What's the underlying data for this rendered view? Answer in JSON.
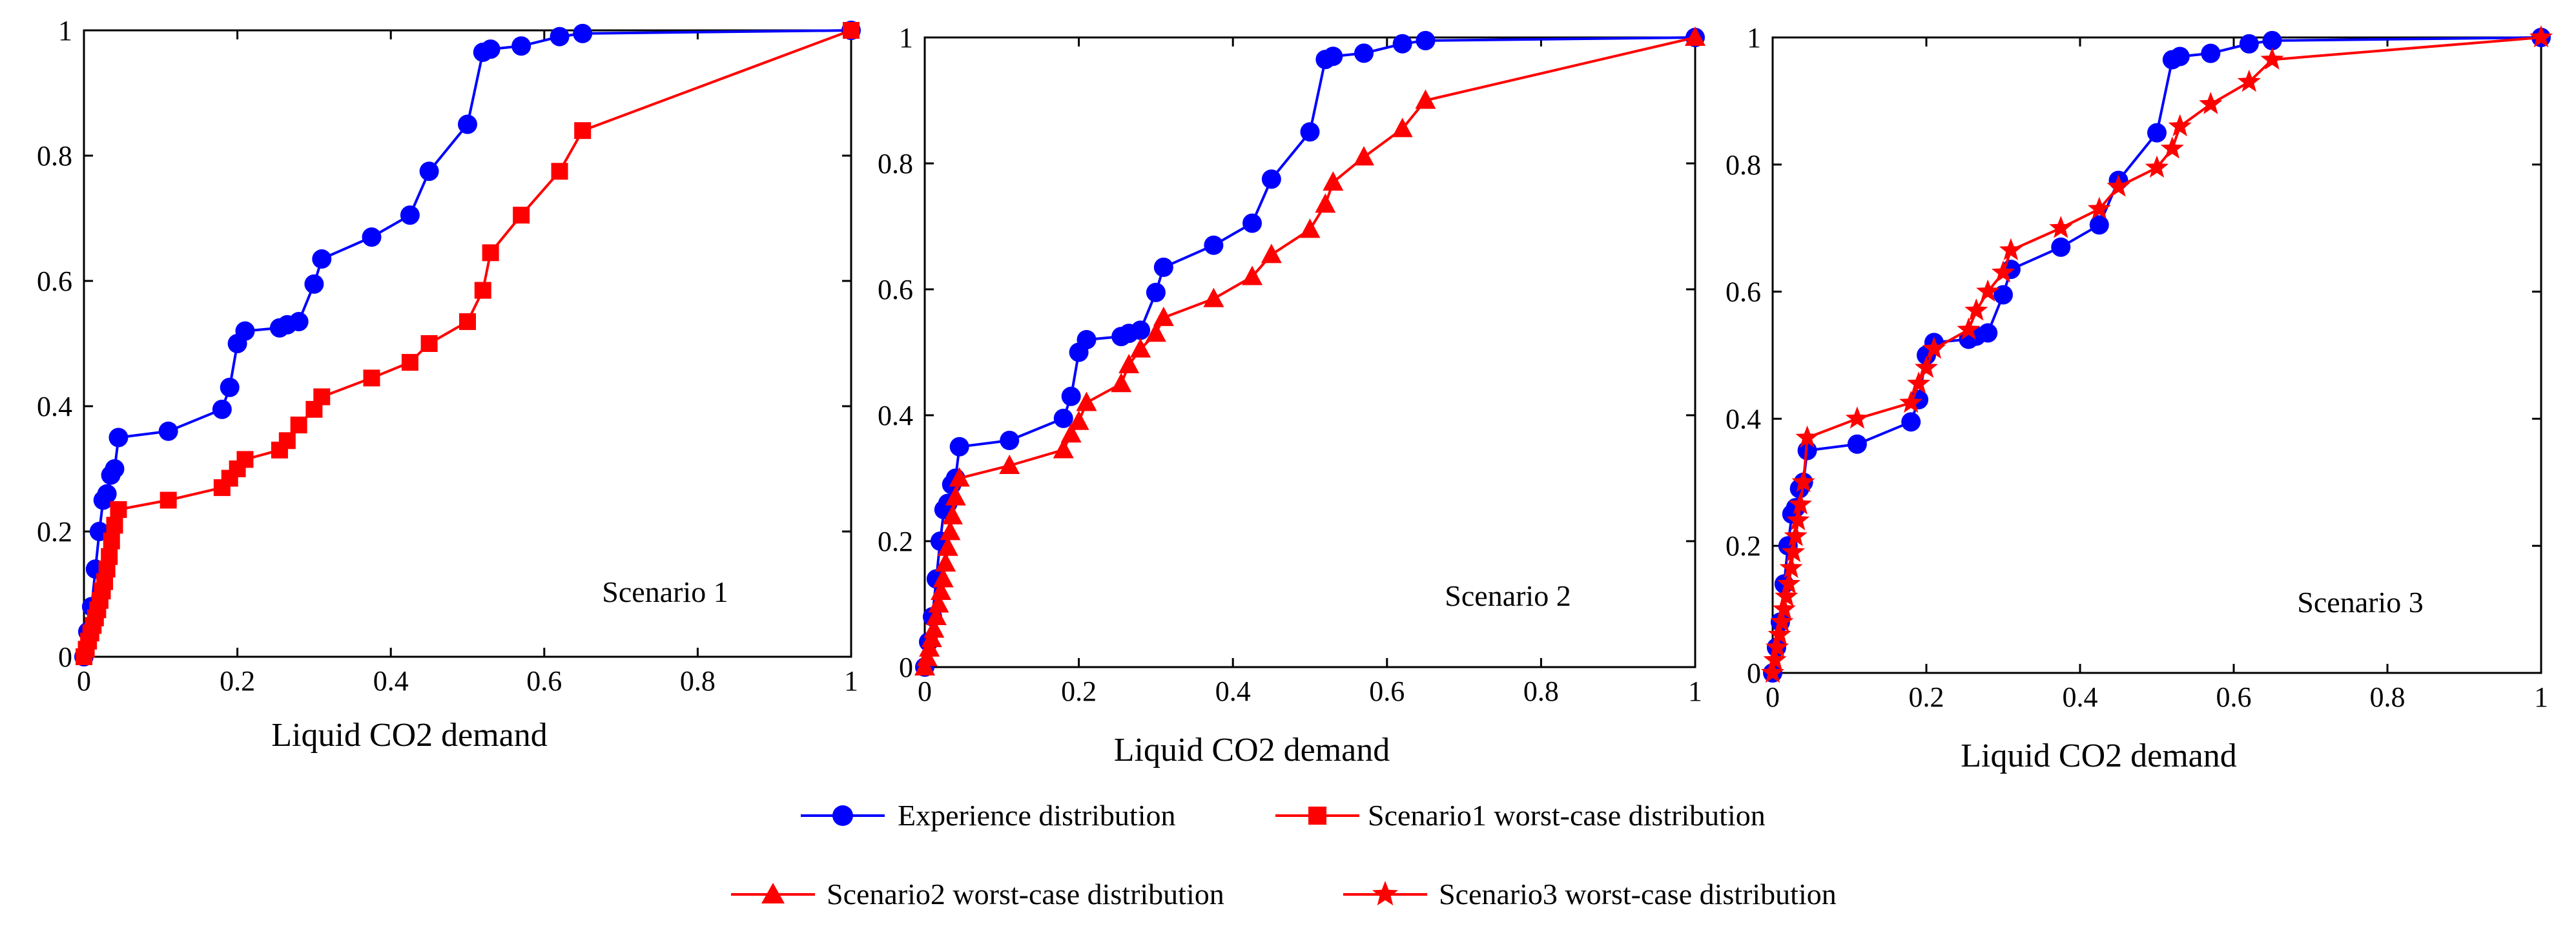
{
  "colors": {
    "experience": "#0000ff",
    "worst_case": "#ff0000",
    "axis": "#000000"
  },
  "legend": {
    "experience": "Experience distribution",
    "scenario1": "Scenario1 worst-case distribution",
    "scenario2": "Scenario2 worst-case distribution",
    "scenario3": "Scenario3 worst-case distribution"
  },
  "chart_data": [
    {
      "type": "line",
      "title": "Scenario 1",
      "xlabel": "Liquid CO2 demand",
      "ylabel": "",
      "xlim": [
        0,
        1
      ],
      "ylim": [
        0,
        1
      ],
      "xticks": [
        "0",
        "0.2",
        "0.4",
        "0.6",
        "0.8",
        "1"
      ],
      "yticks": [
        "0",
        "0.2",
        "0.4",
        "0.6",
        "0.8",
        "1"
      ],
      "series": [
        {
          "name": "Experience distribution",
          "marker": "circle",
          "color": "#0000ff",
          "x": [
            0,
            0.005,
            0.01,
            0.015,
            0.02,
            0.025,
            0.03,
            0.035,
            0.04,
            0.045,
            0.11,
            0.18,
            0.19,
            0.2,
            0.21,
            0.255,
            0.265,
            0.28,
            0.3,
            0.31,
            0.375,
            0.425,
            0.45,
            0.5,
            0.52,
            0.53,
            0.57,
            0.62,
            0.65,
            1.0
          ],
          "y": [
            0,
            0.04,
            0.08,
            0.14,
            0.2,
            0.25,
            0.26,
            0.29,
            0.3,
            0.35,
            0.36,
            0.395,
            0.43,
            0.5,
            0.52,
            0.525,
            0.53,
            0.535,
            0.595,
            0.635,
            0.67,
            0.705,
            0.775,
            0.85,
            0.965,
            0.97,
            0.975,
            0.99,
            0.995,
            1.0
          ]
        },
        {
          "name": "Scenario1 worst-case distribution",
          "marker": "square",
          "color": "#ff0000",
          "x": [
            0,
            0.003,
            0.006,
            0.009,
            0.012,
            0.015,
            0.018,
            0.021,
            0.024,
            0.027,
            0.03,
            0.033,
            0.036,
            0.04,
            0.045,
            0.11,
            0.18,
            0.19,
            0.2,
            0.21,
            0.255,
            0.265,
            0.28,
            0.3,
            0.31,
            0.375,
            0.425,
            0.45,
            0.5,
            0.52,
            0.53,
            0.57,
            0.62,
            0.65,
            1.0
          ],
          "y": [
            0,
            0.012,
            0.025,
            0.038,
            0.05,
            0.062,
            0.075,
            0.09,
            0.105,
            0.12,
            0.14,
            0.16,
            0.185,
            0.21,
            0.235,
            0.25,
            0.27,
            0.285,
            0.3,
            0.315,
            0.33,
            0.345,
            0.37,
            0.395,
            0.415,
            0.445,
            0.47,
            0.5,
            0.535,
            0.585,
            0.645,
            0.705,
            0.775,
            0.84,
            1.0
          ]
        }
      ]
    },
    {
      "type": "line",
      "title": "Scenario 2",
      "xlabel": "Liquid CO2 demand",
      "ylabel": "",
      "xlim": [
        0,
        1
      ],
      "ylim": [
        0,
        1
      ],
      "xticks": [
        "0",
        "0.2",
        "0.4",
        "0.6",
        "0.8",
        "1"
      ],
      "yticks": [
        "0",
        "0.2",
        "0.4",
        "0.6",
        "0.8",
        "1"
      ],
      "series": [
        {
          "name": "Experience distribution",
          "marker": "circle",
          "color": "#0000ff",
          "x": [
            0,
            0.005,
            0.01,
            0.015,
            0.02,
            0.025,
            0.03,
            0.035,
            0.04,
            0.045,
            0.11,
            0.18,
            0.19,
            0.2,
            0.21,
            0.255,
            0.265,
            0.28,
            0.3,
            0.31,
            0.375,
            0.425,
            0.45,
            0.5,
            0.52,
            0.53,
            0.57,
            0.62,
            0.65,
            1.0
          ],
          "y": [
            0,
            0.04,
            0.08,
            0.14,
            0.2,
            0.25,
            0.26,
            0.29,
            0.3,
            0.35,
            0.36,
            0.395,
            0.43,
            0.5,
            0.52,
            0.525,
            0.53,
            0.535,
            0.595,
            0.635,
            0.67,
            0.705,
            0.775,
            0.85,
            0.965,
            0.97,
            0.975,
            0.99,
            0.995,
            1.0
          ]
        },
        {
          "name": "Scenario2 worst-case distribution",
          "marker": "triangle",
          "color": "#ff0000",
          "x": [
            0,
            0.003,
            0.006,
            0.009,
            0.012,
            0.015,
            0.018,
            0.021,
            0.024,
            0.027,
            0.03,
            0.033,
            0.036,
            0.04,
            0.045,
            0.11,
            0.18,
            0.19,
            0.2,
            0.21,
            0.255,
            0.265,
            0.28,
            0.3,
            0.31,
            0.375,
            0.425,
            0.45,
            0.5,
            0.52,
            0.53,
            0.57,
            0.62,
            0.65,
            1.0
          ],
          "y": [
            0,
            0.015,
            0.03,
            0.045,
            0.06,
            0.08,
            0.1,
            0.12,
            0.14,
            0.165,
            0.19,
            0.215,
            0.24,
            0.27,
            0.3,
            0.32,
            0.345,
            0.37,
            0.39,
            0.42,
            0.45,
            0.48,
            0.505,
            0.53,
            0.555,
            0.585,
            0.62,
            0.655,
            0.695,
            0.735,
            0.77,
            0.81,
            0.855,
            0.9,
            1.0
          ]
        }
      ]
    },
    {
      "type": "line",
      "title": "Scenario 3",
      "xlabel": "Liquid CO2 demand",
      "ylabel": "",
      "xlim": [
        0,
        1
      ],
      "ylim": [
        0,
        1
      ],
      "xticks": [
        "0",
        "0.2",
        "0.4",
        "0.6",
        "0.8",
        "1"
      ],
      "yticks": [
        "0",
        "0.2",
        "0.4",
        "0.6",
        "0.8",
        "1"
      ],
      "series": [
        {
          "name": "Experience distribution",
          "marker": "circle",
          "color": "#0000ff",
          "x": [
            0,
            0.005,
            0.01,
            0.015,
            0.02,
            0.025,
            0.03,
            0.035,
            0.04,
            0.045,
            0.11,
            0.18,
            0.19,
            0.2,
            0.21,
            0.255,
            0.265,
            0.28,
            0.3,
            0.31,
            0.375,
            0.425,
            0.45,
            0.5,
            0.52,
            0.53,
            0.57,
            0.62,
            0.65,
            1.0
          ],
          "y": [
            0,
            0.04,
            0.08,
            0.14,
            0.2,
            0.25,
            0.26,
            0.29,
            0.3,
            0.35,
            0.36,
            0.395,
            0.43,
            0.5,
            0.52,
            0.525,
            0.53,
            0.535,
            0.595,
            0.635,
            0.67,
            0.705,
            0.775,
            0.85,
            0.965,
            0.97,
            0.975,
            0.99,
            0.995,
            1.0
          ]
        },
        {
          "name": "Scenario3 worst-case distribution",
          "marker": "star",
          "color": "#ff0000",
          "x": [
            0,
            0.003,
            0.006,
            0.009,
            0.012,
            0.015,
            0.018,
            0.021,
            0.024,
            0.027,
            0.03,
            0.033,
            0.036,
            0.04,
            0.045,
            0.11,
            0.18,
            0.19,
            0.2,
            0.21,
            0.255,
            0.265,
            0.28,
            0.3,
            0.31,
            0.375,
            0.425,
            0.45,
            0.5,
            0.52,
            0.53,
            0.57,
            0.62,
            0.65,
            1.0
          ],
          "y": [
            0,
            0.02,
            0.04,
            0.06,
            0.08,
            0.1,
            0.12,
            0.14,
            0.165,
            0.19,
            0.215,
            0.24,
            0.265,
            0.3,
            0.37,
            0.4,
            0.425,
            0.455,
            0.48,
            0.51,
            0.54,
            0.57,
            0.6,
            0.63,
            0.665,
            0.7,
            0.73,
            0.765,
            0.795,
            0.825,
            0.86,
            0.895,
            0.93,
            0.965,
            1.0
          ]
        }
      ]
    }
  ]
}
